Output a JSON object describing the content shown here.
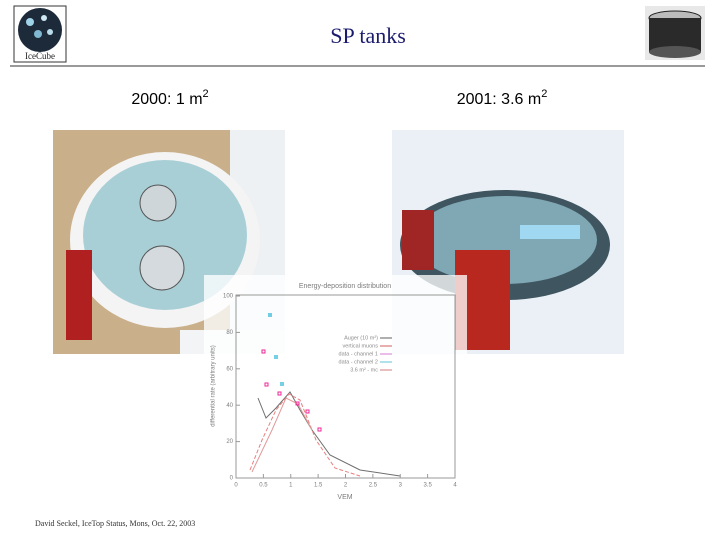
{
  "header": {
    "title": "SP tanks",
    "logo": "IceCube"
  },
  "photos": [
    {
      "caption": "2000: 1 m",
      "sup": "2"
    },
    {
      "caption": "2001: 3.6 m",
      "sup": "2"
    }
  ],
  "plot": {
    "title": "Energy-deposition distribution",
    "xlabel": "VEM",
    "ylabel": "differential rate (arbitrary units)",
    "xlim": [
      0,
      4
    ],
    "ylim": [
      0,
      100
    ],
    "xticks": [
      0,
      0.5,
      1,
      1.5,
      2,
      2.5,
      3,
      3.5,
      4
    ],
    "yticks": [
      0,
      20,
      40,
      60,
      80,
      100
    ],
    "legend": [
      "Auger (10 m²)",
      "vertical muons",
      "data - channel 1",
      "data - channel 2",
      "3.6 m² - mc"
    ]
  },
  "footer": "David Seckel, IceTop Status, Mons, Oct. 22, 2003"
}
